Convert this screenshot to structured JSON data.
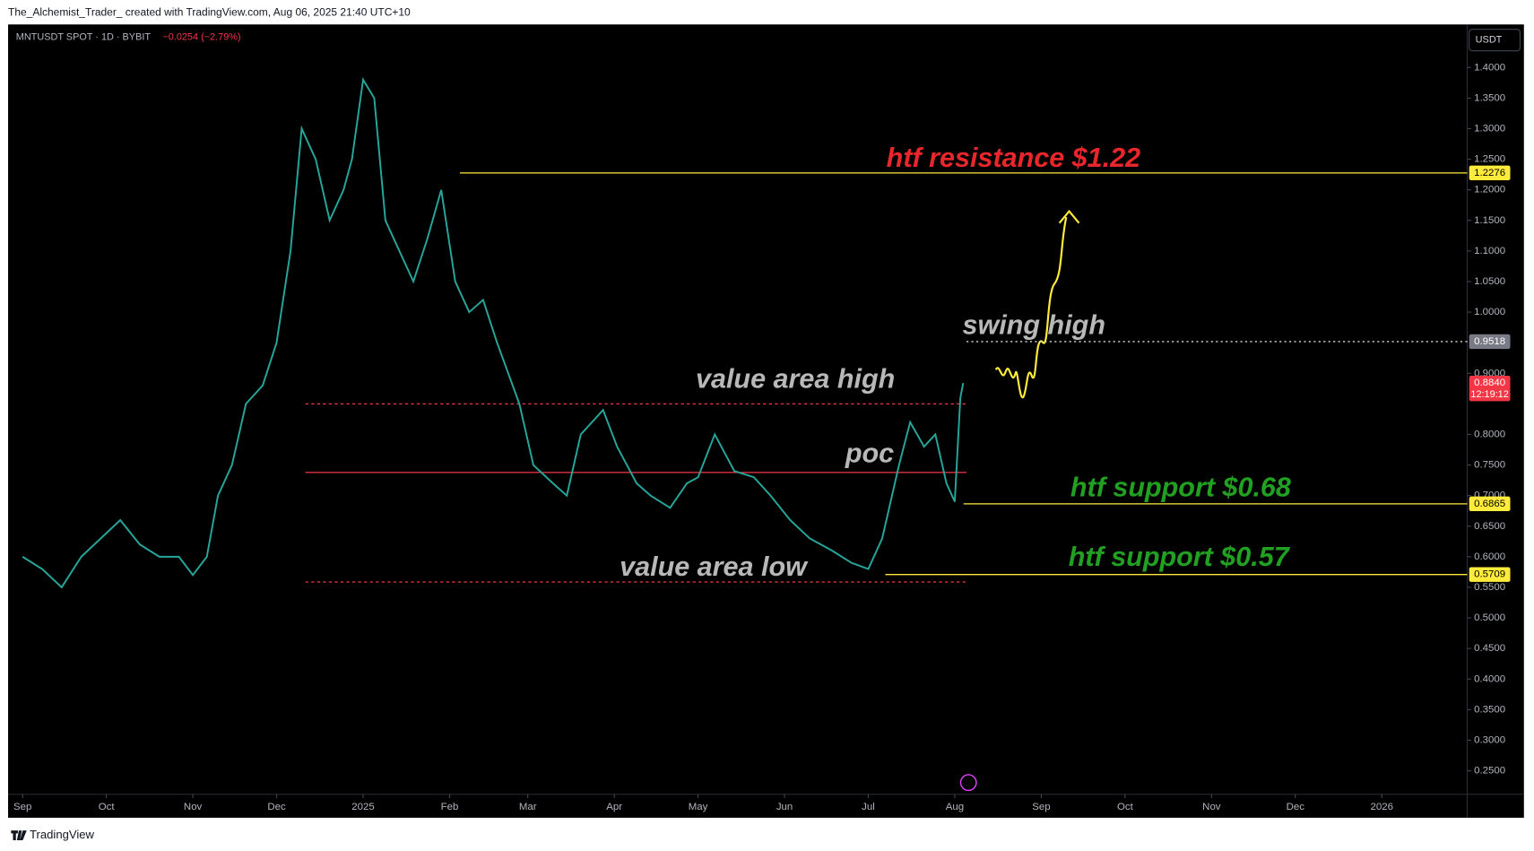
{
  "header": {
    "caption": "The_Alchemist_Trader_ created with TradingView.com, Aug 06, 2025 21:40 UTC+10",
    "symbol": "MNTUSDT SPOT · 1D · BYBIT",
    "change": "−0.0254 (−2.79%)",
    "currency": "USDT",
    "brand": "TradingView"
  },
  "chart_data": {
    "type": "line",
    "color": "#26a69a",
    "x": [
      0,
      7,
      14,
      21,
      28,
      35,
      42,
      49,
      56,
      61,
      66,
      70,
      75,
      80,
      86,
      91,
      96,
      100,
      105,
      110,
      115,
      118,
      122,
      126,
      130,
      135,
      140,
      145,
      150,
      155,
      160,
      165,
      170,
      178,
      183,
      190,
      195,
      200,
      208,
      213,
      220,
      225,
      232,
      238,
      242,
      248,
      255,
      262,
      268,
      275,
      282,
      290,
      297,
      303,
      308,
      314,
      318,
      323,
      327,
      331,
      334,
      336,
      337
    ],
    "values": [
      0.6,
      0.58,
      0.55,
      0.6,
      0.63,
      0.66,
      0.62,
      0.6,
      0.6,
      0.57,
      0.6,
      0.7,
      0.75,
      0.85,
      0.88,
      0.95,
      1.1,
      1.3,
      1.25,
      1.15,
      1.2,
      1.25,
      1.38,
      1.35,
      1.15,
      1.1,
      1.05,
      1.12,
      1.2,
      1.05,
      1.0,
      1.02,
      0.95,
      0.85,
      0.75,
      0.72,
      0.7,
      0.8,
      0.84,
      0.78,
      0.72,
      0.7,
      0.68,
      0.72,
      0.73,
      0.8,
      0.74,
      0.73,
      0.7,
      0.66,
      0.63,
      0.61,
      0.59,
      0.58,
      0.63,
      0.75,
      0.82,
      0.78,
      0.8,
      0.72,
      0.69,
      0.86,
      0.884
    ],
    "xlim": [
      -4.5,
      517.6
    ],
    "xticks": [
      {
        "value": 0,
        "label": "Sep"
      },
      {
        "value": 30,
        "label": "Oct"
      },
      {
        "value": 61,
        "label": "Nov"
      },
      {
        "value": 91,
        "label": "Dec"
      },
      {
        "value": 122,
        "label": "2025"
      },
      {
        "value": 153,
        "label": "Feb"
      },
      {
        "value": 181,
        "label": "Mar"
      },
      {
        "value": 212,
        "label": "Apr"
      },
      {
        "value": 242,
        "label": "May"
      },
      {
        "value": 273,
        "label": "Jun"
      },
      {
        "value": 303,
        "label": "Jul"
      },
      {
        "value": 334,
        "label": "Aug"
      },
      {
        "value": 365,
        "label": "Sep"
      },
      {
        "value": 395,
        "label": "Oct"
      },
      {
        "value": 426,
        "label": "Nov"
      },
      {
        "value": 456,
        "label": "Dec"
      },
      {
        "value": 487,
        "label": "2026"
      }
    ],
    "ylim": [
      0.2116,
      1.4704
    ],
    "yticks": [
      {
        "value": 0.25,
        "label": "0.2500"
      },
      {
        "value": 0.3,
        "label": "0.3000"
      },
      {
        "value": 0.35,
        "label": "0.3500"
      },
      {
        "value": 0.4,
        "label": "0.4000"
      },
      {
        "value": 0.45,
        "label": "0.4500"
      },
      {
        "value": 0.5,
        "label": "0.5000"
      },
      {
        "value": 0.55,
        "label": "0.5500"
      },
      {
        "value": 0.6,
        "label": "0.6000"
      },
      {
        "value": 0.65,
        "label": "0.6500"
      },
      {
        "value": 0.7,
        "label": "0.7000"
      },
      {
        "value": 0.75,
        "label": "0.7500"
      },
      {
        "value": 0.8,
        "label": "0.8000"
      },
      {
        "value": 0.9,
        "label": "0.9000"
      },
      {
        "value": 1.0,
        "label": "1.0000"
      },
      {
        "value": 1.05,
        "label": "1.0500"
      },
      {
        "value": 1.1,
        "label": "1.1000"
      },
      {
        "value": 1.15,
        "label": "1.1500"
      },
      {
        "value": 1.2,
        "label": "1.2000"
      },
      {
        "value": 1.25,
        "label": "1.2500"
      },
      {
        "value": 1.3,
        "label": "1.3000"
      },
      {
        "value": 1.35,
        "label": "1.3500"
      },
      {
        "value": 1.4,
        "label": "1.4000"
      }
    ],
    "price_labels": [
      {
        "value": 1.2276,
        "color": "#ffeb3b"
      },
      {
        "value": 0.9518,
        "color": "#787b86"
      },
      {
        "value": 0.884,
        "label": "0.8840",
        "color": "#f23645"
      },
      {
        "value": 0.6865,
        "color": "#ffeb3b"
      },
      {
        "value": 0.5709,
        "color": "#ffeb3b"
      }
    ],
    "countdown": "12:19:12",
    "profile_levels": [
      0.85,
      0.7378,
      0.5587
    ],
    "annotations": [
      {
        "text": "htf resistance $1.22",
        "color": "#e8262b"
      },
      {
        "text": "swing high",
        "color": "#b8b8b8"
      },
      {
        "text": "value area high",
        "color": "#b8b8b8"
      },
      {
        "text": "poc",
        "color": "#b8b8b8"
      },
      {
        "text": "htf support $0.68",
        "color": "#22a022"
      },
      {
        "text": "value area low",
        "color": "#b8b8b8"
      },
      {
        "text": "htf support $0.57",
        "color": "#22a022"
      }
    ]
  }
}
